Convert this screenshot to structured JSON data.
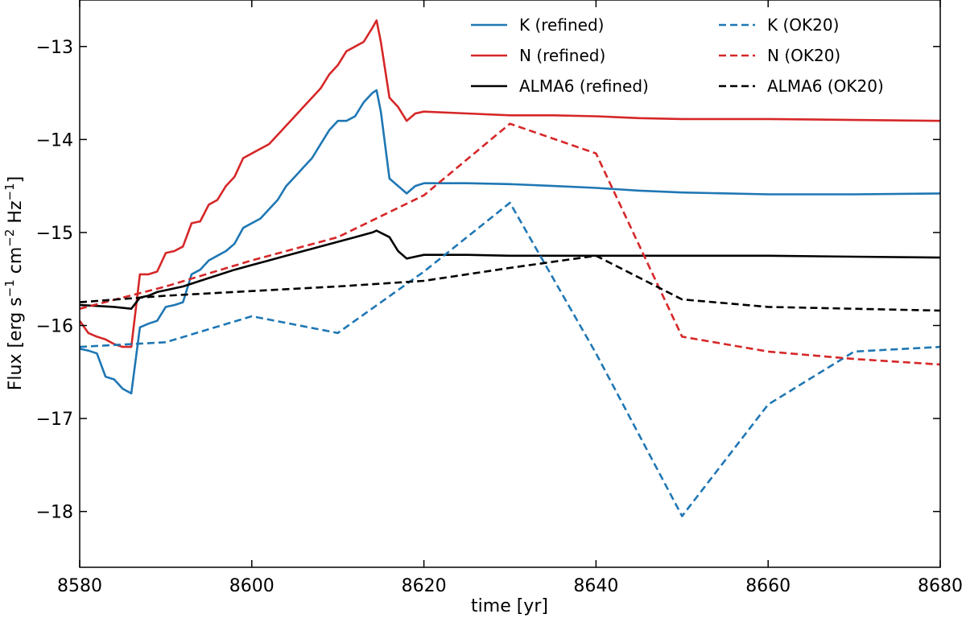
{
  "chart_data": {
    "type": "line",
    "xlabel": "time [yr]",
    "ylabel_parts": [
      "Flux [erg s",
      "−1",
      " cm",
      "−2",
      " Hz",
      "−1",
      "]"
    ],
    "xlim": [
      8580,
      8680
    ],
    "ylim": [
      -18.6,
      -12.5
    ],
    "xticks": [
      8580,
      8600,
      8620,
      8640,
      8660,
      8680
    ],
    "yticks": [
      -18,
      -17,
      -16,
      -15,
      -14,
      -13
    ],
    "ytick_labels": [
      "−18",
      "−17",
      "−16",
      "−15",
      "−14",
      "−13"
    ],
    "legend_position": "upper-right",
    "series": [
      {
        "name": "K (refined)",
        "color": "#1f77b4",
        "style": "solid",
        "points": [
          [
            8580,
            -16.25
          ],
          [
            8581,
            -16.27
          ],
          [
            8582,
            -16.3
          ],
          [
            8583,
            -16.55
          ],
          [
            8584,
            -16.58
          ],
          [
            8585,
            -16.68
          ],
          [
            8586,
            -16.73
          ],
          [
            8587,
            -16.02
          ],
          [
            8588,
            -15.98
          ],
          [
            8589,
            -15.95
          ],
          [
            8590,
            -15.8
          ],
          [
            8591,
            -15.78
          ],
          [
            8592,
            -15.75
          ],
          [
            8593,
            -15.45
          ],
          [
            8594,
            -15.4
          ],
          [
            8595,
            -15.3
          ],
          [
            8596,
            -15.25
          ],
          [
            8597,
            -15.2
          ],
          [
            8598,
            -15.12
          ],
          [
            8599,
            -14.95
          ],
          [
            8600,
            -14.9
          ],
          [
            8601,
            -14.85
          ],
          [
            8602,
            -14.75
          ],
          [
            8603,
            -14.65
          ],
          [
            8604,
            -14.5
          ],
          [
            8605,
            -14.4
          ],
          [
            8606,
            -14.3
          ],
          [
            8607,
            -14.2
          ],
          [
            8608,
            -14.05
          ],
          [
            8609,
            -13.9
          ],
          [
            8610,
            -13.8
          ],
          [
            8611,
            -13.8
          ],
          [
            8612,
            -13.75
          ],
          [
            8613,
            -13.6
          ],
          [
            8614,
            -13.5
          ],
          [
            8614.5,
            -13.47
          ],
          [
            8615,
            -13.7
          ],
          [
            8616,
            -14.42
          ],
          [
            8617,
            -14.5
          ],
          [
            8618,
            -14.58
          ],
          [
            8619,
            -14.5
          ],
          [
            8620,
            -14.47
          ],
          [
            8625,
            -14.47
          ],
          [
            8630,
            -14.48
          ],
          [
            8635,
            -14.5
          ],
          [
            8640,
            -14.52
          ],
          [
            8645,
            -14.55
          ],
          [
            8650,
            -14.57
          ],
          [
            8660,
            -14.59
          ],
          [
            8670,
            -14.59
          ],
          [
            8680,
            -14.58
          ]
        ]
      },
      {
        "name": "N (refined)",
        "color": "#d62728",
        "style": "solid",
        "points": [
          [
            8580,
            -15.95
          ],
          [
            8581,
            -16.08
          ],
          [
            8582,
            -16.12
          ],
          [
            8583,
            -16.15
          ],
          [
            8584,
            -16.2
          ],
          [
            8585,
            -16.23
          ],
          [
            8586,
            -16.23
          ],
          [
            8587,
            -15.45
          ],
          [
            8588,
            -15.45
          ],
          [
            8589,
            -15.42
          ],
          [
            8590,
            -15.22
          ],
          [
            8591,
            -15.2
          ],
          [
            8592,
            -15.15
          ],
          [
            8593,
            -14.9
          ],
          [
            8594,
            -14.88
          ],
          [
            8595,
            -14.7
          ],
          [
            8596,
            -14.65
          ],
          [
            8597,
            -14.5
          ],
          [
            8598,
            -14.4
          ],
          [
            8599,
            -14.2
          ],
          [
            8600,
            -14.15
          ],
          [
            8601,
            -14.1
          ],
          [
            8602,
            -14.05
          ],
          [
            8603,
            -13.95
          ],
          [
            8604,
            -13.85
          ],
          [
            8605,
            -13.75
          ],
          [
            8606,
            -13.65
          ],
          [
            8607,
            -13.55
          ],
          [
            8608,
            -13.45
          ],
          [
            8609,
            -13.3
          ],
          [
            8610,
            -13.2
          ],
          [
            8611,
            -13.05
          ],
          [
            8612,
            -13.0
          ],
          [
            8613,
            -12.95
          ],
          [
            8614,
            -12.8
          ],
          [
            8614.5,
            -12.72
          ],
          [
            8615,
            -12.95
          ],
          [
            8616,
            -13.55
          ],
          [
            8617,
            -13.65
          ],
          [
            8618,
            -13.8
          ],
          [
            8619,
            -13.72
          ],
          [
            8620,
            -13.7
          ],
          [
            8625,
            -13.72
          ],
          [
            8630,
            -13.74
          ],
          [
            8635,
            -13.74
          ],
          [
            8640,
            -13.75
          ],
          [
            8645,
            -13.77
          ],
          [
            8650,
            -13.78
          ],
          [
            8660,
            -13.78
          ],
          [
            8670,
            -13.79
          ],
          [
            8680,
            -13.8
          ]
        ]
      },
      {
        "name": "ALMA6 (refined)",
        "color": "#000000",
        "style": "solid",
        "points": [
          [
            8580,
            -15.78
          ],
          [
            8582,
            -15.79
          ],
          [
            8584,
            -15.8
          ],
          [
            8586,
            -15.82
          ],
          [
            8587,
            -15.7
          ],
          [
            8588,
            -15.68
          ],
          [
            8589,
            -15.64
          ],
          [
            8590,
            -15.62
          ],
          [
            8592,
            -15.58
          ],
          [
            8594,
            -15.52
          ],
          [
            8596,
            -15.46
          ],
          [
            8598,
            -15.4
          ],
          [
            8600,
            -15.35
          ],
          [
            8602,
            -15.3
          ],
          [
            8604,
            -15.25
          ],
          [
            8606,
            -15.2
          ],
          [
            8608,
            -15.15
          ],
          [
            8610,
            -15.1
          ],
          [
            8612,
            -15.05
          ],
          [
            8614,
            -15.0
          ],
          [
            8614.5,
            -14.98
          ],
          [
            8616,
            -15.05
          ],
          [
            8617,
            -15.2
          ],
          [
            8618,
            -15.28
          ],
          [
            8620,
            -15.24
          ],
          [
            8625,
            -15.24
          ],
          [
            8630,
            -15.25
          ],
          [
            8640,
            -15.25
          ],
          [
            8650,
            -15.25
          ],
          [
            8660,
            -15.25
          ],
          [
            8670,
            -15.26
          ],
          [
            8680,
            -15.27
          ]
        ]
      },
      {
        "name": "K (OK20)",
        "color": "#1f77b4",
        "style": "dashed",
        "points": [
          [
            8580,
            -16.23
          ],
          [
            8590,
            -16.18
          ],
          [
            8600,
            -15.9
          ],
          [
            8610,
            -16.08
          ],
          [
            8620,
            -15.42
          ],
          [
            8630,
            -14.68
          ],
          [
            8640,
            -16.3
          ],
          [
            8650,
            -18.05
          ],
          [
            8660,
            -16.85
          ],
          [
            8670,
            -16.28
          ],
          [
            8680,
            -16.23
          ]
        ]
      },
      {
        "name": "N (OK20)",
        "color": "#d62728",
        "style": "dashed",
        "points": [
          [
            8580,
            -15.82
          ],
          [
            8590,
            -15.58
          ],
          [
            8600,
            -15.3
          ],
          [
            8610,
            -15.05
          ],
          [
            8620,
            -14.6
          ],
          [
            8630,
            -13.83
          ],
          [
            8640,
            -14.15
          ],
          [
            8650,
            -16.12
          ],
          [
            8660,
            -16.28
          ],
          [
            8670,
            -16.36
          ],
          [
            8680,
            -16.42
          ]
        ]
      },
      {
        "name": "ALMA6 (OK20)",
        "color": "#000000",
        "style": "dashed",
        "points": [
          [
            8580,
            -15.75
          ],
          [
            8590,
            -15.68
          ],
          [
            8600,
            -15.63
          ],
          [
            8610,
            -15.58
          ],
          [
            8620,
            -15.52
          ],
          [
            8630,
            -15.38
          ],
          [
            8640,
            -15.25
          ],
          [
            8650,
            -15.72
          ],
          [
            8660,
            -15.8
          ],
          [
            8670,
            -15.82
          ],
          [
            8680,
            -15.84
          ]
        ]
      }
    ]
  }
}
